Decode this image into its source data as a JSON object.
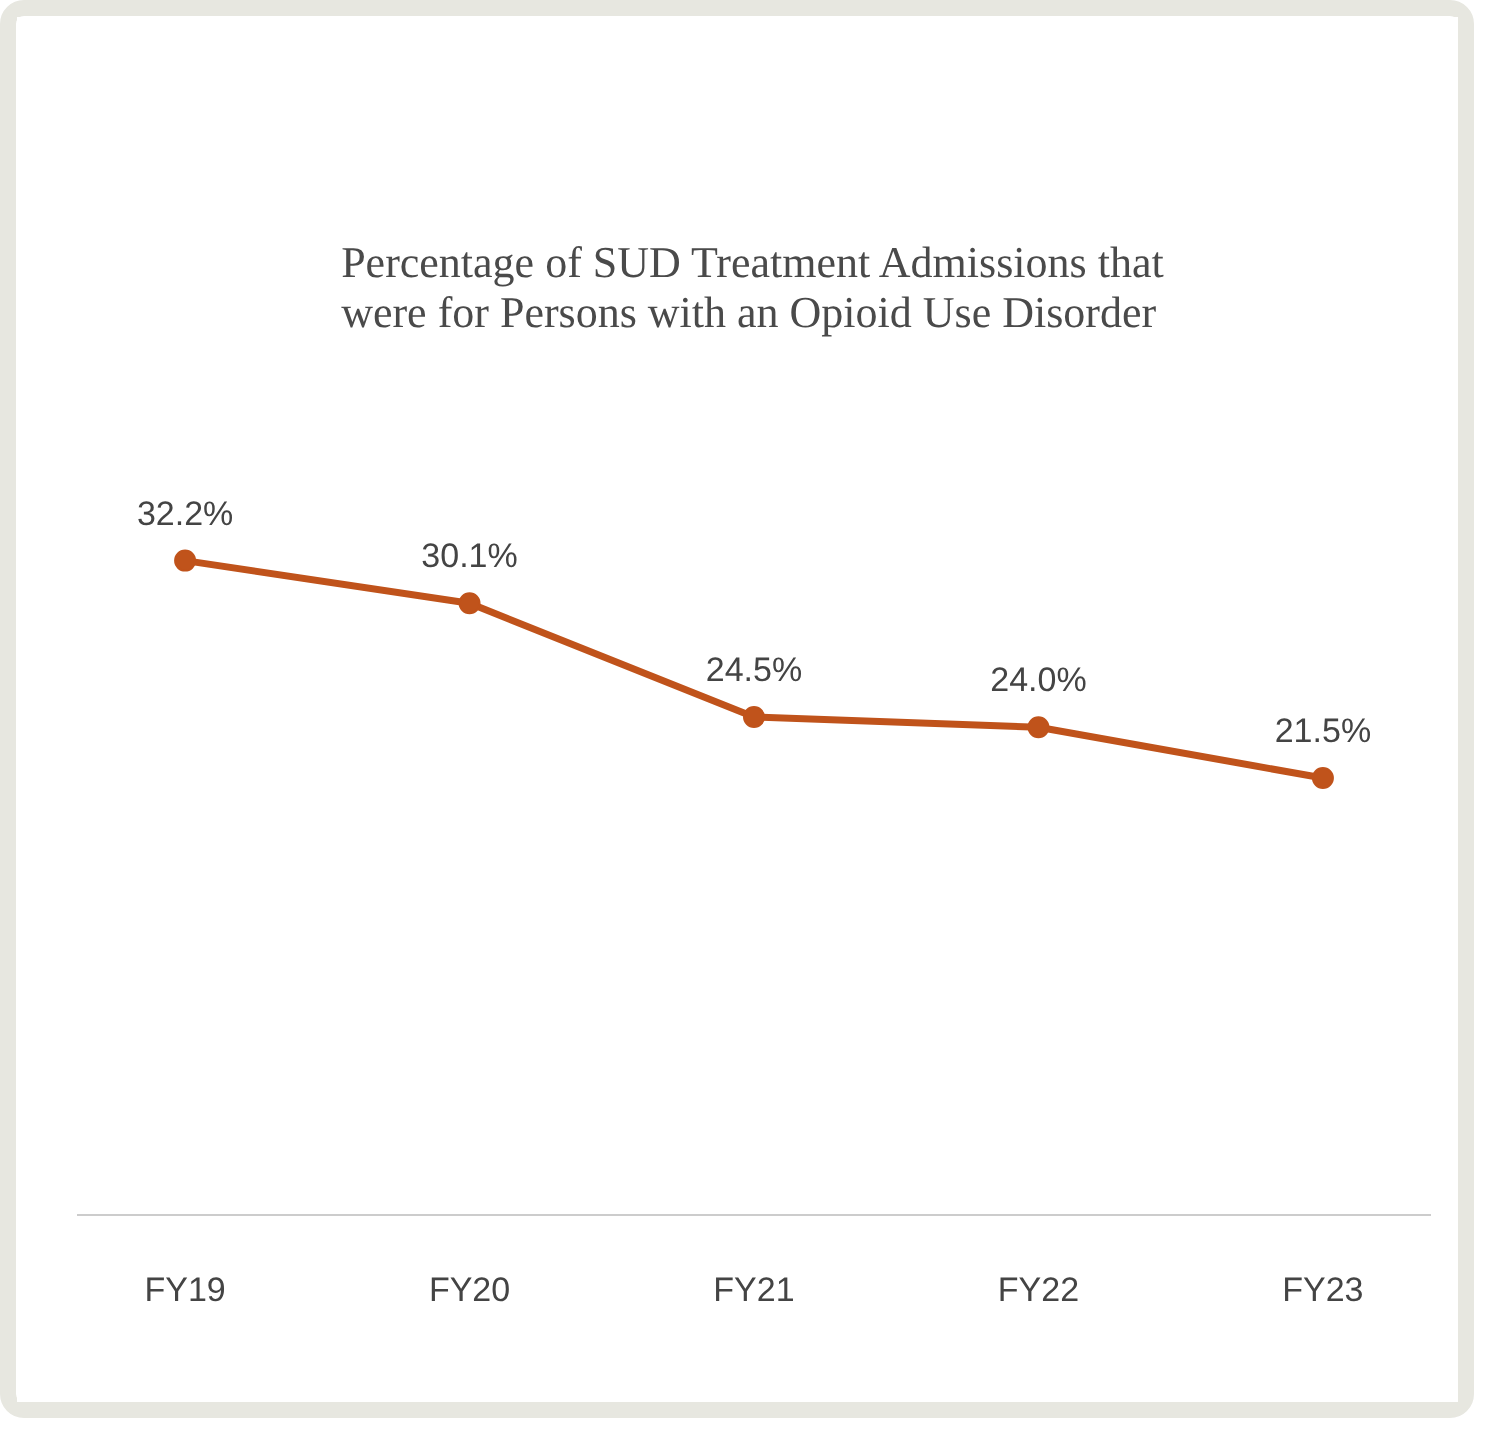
{
  "chart_data": {
    "type": "line",
    "title": "Percentage of SUD Treatment Admissions that\nwere for Persons with an Opioid Use Disorder",
    "categories": [
      "FY19",
      "FY20",
      "FY21",
      "FY22",
      "FY23"
    ],
    "series": [
      {
        "color": "#c0531b",
        "values": [
          32.2,
          30.1,
          24.5,
          24.0,
          21.5
        ],
        "value_labels": [
          "32.2%",
          "30.1%",
          "24.5%",
          "24.0%",
          "21.5%"
        ]
      }
    ],
    "tick_labels": "x",
    "marker": "circle",
    "line_style": "solid",
    "grid": false
  }
}
